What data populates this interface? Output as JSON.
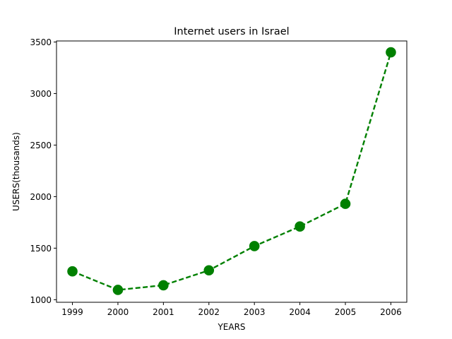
{
  "chart_data": {
    "type": "line",
    "title": "Internet users in Israel",
    "xlabel": "YEARS",
    "ylabel": "USERS(thousands)",
    "x": [
      1999,
      2000,
      2001,
      2002,
      2003,
      2004,
      2005,
      2006
    ],
    "xticks": [
      "1999",
      "2000",
      "2001",
      "2002",
      "2003",
      "2004",
      "2005",
      "2006"
    ],
    "yticks": [
      1000,
      1500,
      2000,
      2500,
      3000,
      3500
    ],
    "ylim": [
      975,
      3510
    ],
    "series": [
      {
        "values": [
          1275,
          1095,
          1140,
          1285,
          1520,
          1710,
          1930,
          3400
        ],
        "color": "#008000",
        "line_style": "dashed",
        "marker": "circle"
      }
    ],
    "grid": false,
    "legend": "none"
  }
}
